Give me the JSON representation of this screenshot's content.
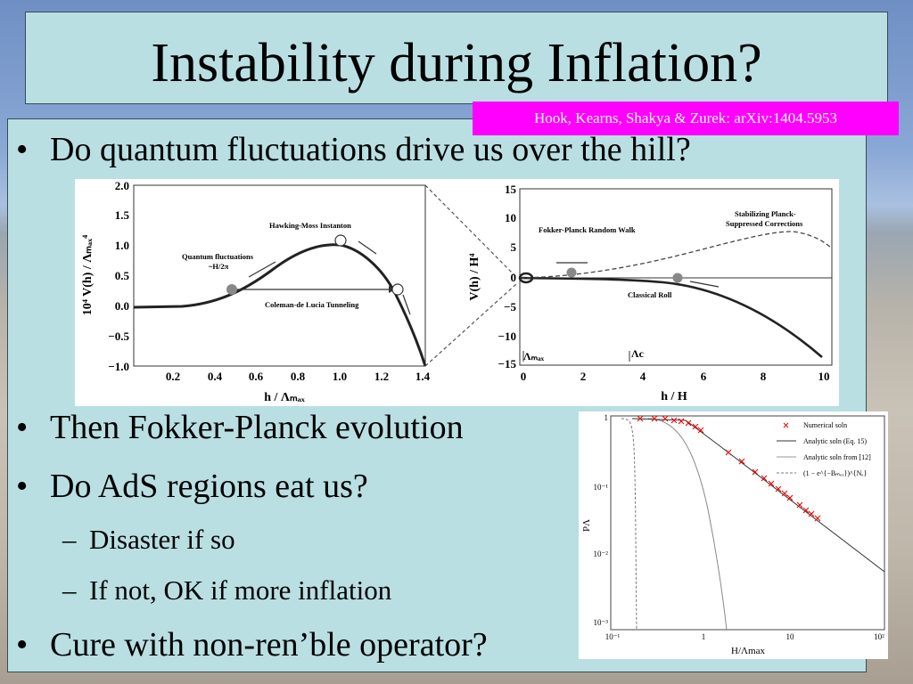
{
  "slide": {
    "title": "Instability during Inflation?",
    "citation": "Hook, Kearns, Shakya & Zurek: arXiv:1404.5953"
  },
  "bullets": [
    {
      "text": "Do quantum fluctuations drive us over the hill?"
    },
    {
      "text": "Then Fokker-Planck evolution"
    },
    {
      "text": "Do AdS regions eat us?"
    },
    {
      "text": "Cure with non-ren’ble operator?"
    }
  ],
  "subbullets": [
    {
      "text": "Disaster if so"
    },
    {
      "text": "If not, OK if more inflation"
    }
  ],
  "figure_left": {
    "ylabel": "10⁴ V(h) / Λₘₐₓ⁴",
    "xlabel": "h / Λₘₐₓ",
    "yticks": [
      "2.0",
      "1.5",
      "1.0",
      "0.5",
      "0.0",
      "−0.5",
      "−1.0"
    ],
    "xticks": [
      "0.2",
      "0.4",
      "0.6",
      "0.8",
      "1.0",
      "1.2",
      "1.4"
    ],
    "annotations": {
      "instanton": "Hawking-Moss Instanton",
      "quantum1": "Quantum fluctuations",
      "quantum2": "~H/2π",
      "tunneling": "Coleman-de Lucia Tunneling"
    }
  },
  "figure_right": {
    "ylabel": "V(h) / H⁴",
    "xlabel": "h / H",
    "yticks": [
      "15",
      "10",
      "5",
      "0",
      "−5",
      "−10",
      "−15"
    ],
    "xticks": [
      "0",
      "2",
      "4",
      "6",
      "8",
      "10"
    ],
    "marks": {
      "lmax": "Λₘₐₓ",
      "lc": "Λc"
    },
    "annotations": {
      "walk": "Fokker-Planck Random Walk",
      "planck1": "Stabilizing Planck-",
      "planck2": "Suppressed Corrections",
      "roll": "Classical Roll"
    }
  },
  "figure_bottom": {
    "ylabel": "PΛ",
    "xlabel": "H/Λmax",
    "yticks": [
      "1",
      "10⁻¹",
      "10⁻²",
      "10⁻³"
    ],
    "xticks": [
      "10⁻¹",
      "1",
      "10",
      "10²"
    ],
    "legend": [
      "Numerical soln",
      "Analytic soln (Eq. 15)",
      "Analytic soln from [12]",
      "(1 − e^{−Bₘₑₓ})^{Nₑ}"
    ]
  }
}
